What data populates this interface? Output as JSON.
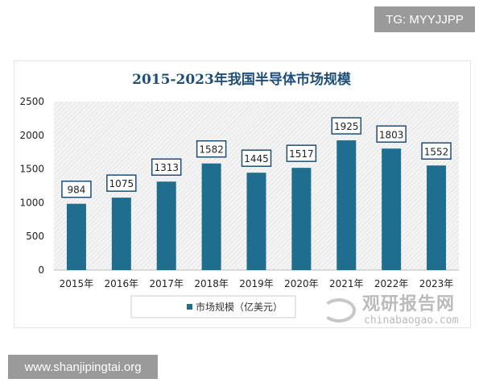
{
  "watermarks": {
    "tg": "TG: MYYJJPP",
    "site": "www.shanjipingtai.org",
    "brand_cn": "观研报告网",
    "brand_en": "chinabaogao.com"
  },
  "chart_data": {
    "type": "bar",
    "title": "2015-2023年我国半导体市场规模",
    "categories": [
      "2015年",
      "2016年",
      "2017年",
      "2018年",
      "2019年",
      "2020年",
      "2021年",
      "2022年",
      "2023年"
    ],
    "series": [
      {
        "name": "市场规模（亿美元）",
        "values": [
          984,
          1075,
          1313,
          1582,
          1445,
          1517,
          1925,
          1803,
          1552
        ]
      }
    ],
    "ylim": [
      0,
      2500
    ],
    "yticks": [
      0,
      500,
      1000,
      1500,
      2000,
      2500
    ],
    "xlabel": "",
    "ylabel": "",
    "legend": "bottom",
    "colors": {
      "bar": "#1f6d8f",
      "title": "#1f4e79"
    }
  }
}
